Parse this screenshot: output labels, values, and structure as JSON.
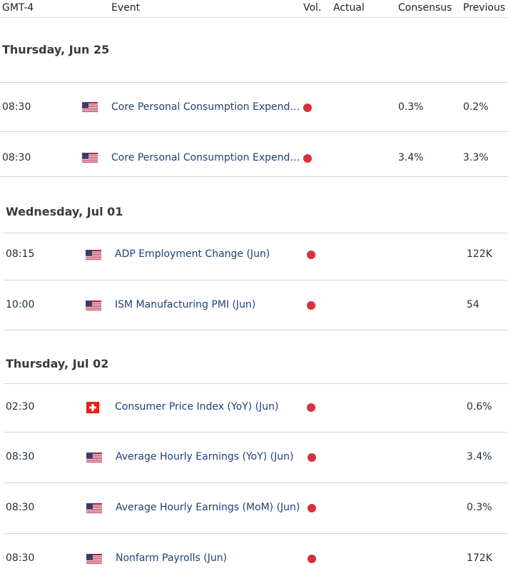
{
  "header": {
    "timezone": "GMT-4",
    "event": "Event",
    "vol": "Vol.",
    "actual": "Actual",
    "consensus": "Consensus",
    "previous": "Previous"
  },
  "colors": {
    "volatility_dot": "#d8303f",
    "event_link": "#1f3f7a"
  },
  "days": [
    {
      "label": "Thursday, Jun 25",
      "events": [
        {
          "time": "08:30",
          "country_icon": "us-flag-icon",
          "event": "Core Personal Consumption Expenditures",
          "actual": "",
          "consensus": "0.3%",
          "previous": "0.2%"
        },
        {
          "time": "08:30",
          "country_icon": "us-flag-icon",
          "event": "Core Personal Consumption Expenditures",
          "actual": "",
          "consensus": "3.4%",
          "previous": "3.3%"
        }
      ]
    },
    {
      "label": "Wednesday, Jul 01",
      "events": [
        {
          "time": "08:15",
          "country_icon": "us-flag-icon",
          "event": "ADP Employment Change (Jun)",
          "actual": "",
          "consensus": "",
          "previous": "122K"
        },
        {
          "time": "10:00",
          "country_icon": "us-flag-icon",
          "event": "ISM Manufacturing PMI (Jun)",
          "actual": "",
          "consensus": "",
          "previous": "54"
        }
      ]
    },
    {
      "label": "Thursday, Jul 02",
      "events": [
        {
          "time": "02:30",
          "country_icon": "swiss-flag-icon",
          "event": "Consumer Price Index (YoY) (Jun)",
          "actual": "",
          "consensus": "",
          "previous": "0.6%"
        },
        {
          "time": "08:30",
          "country_icon": "us-flag-icon",
          "event": "Average Hourly Earnings (YoY) (Jun)",
          "actual": "",
          "consensus": "",
          "previous": "3.4%"
        },
        {
          "time": "08:30",
          "country_icon": "us-flag-icon",
          "event": "Average Hourly Earnings (MoM) (Jun)",
          "actual": "",
          "consensus": "",
          "previous": "0.3%"
        },
        {
          "time": "08:30",
          "country_icon": "us-flag-icon",
          "event": "Nonfarm Payrolls (Jun)",
          "actual": "",
          "consensus": "",
          "previous": "172K"
        }
      ]
    }
  ]
}
